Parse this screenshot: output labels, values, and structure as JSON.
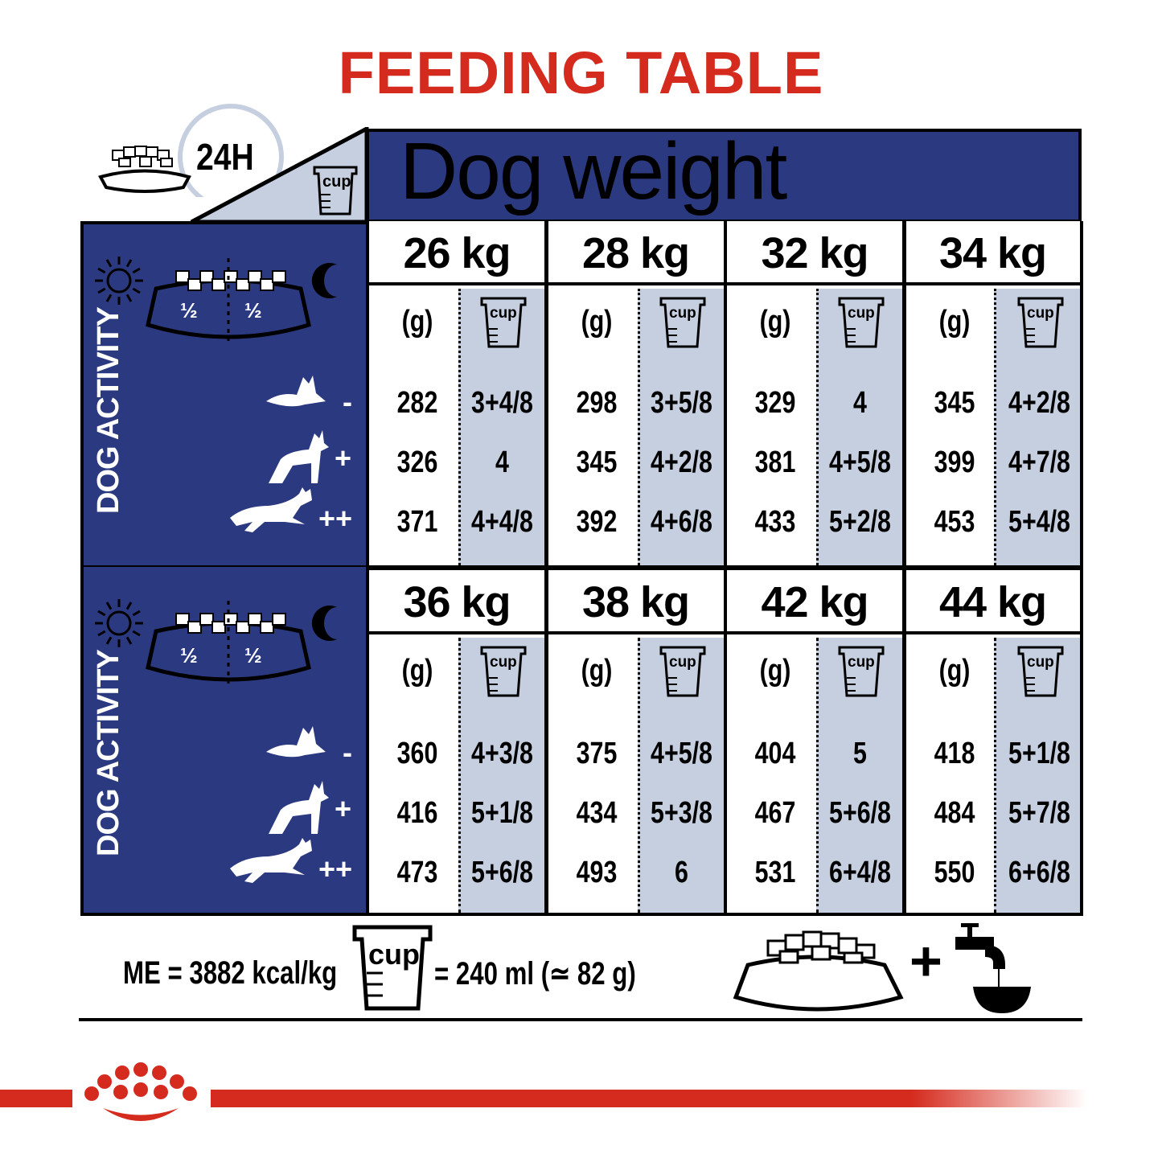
{
  "title": "FEEDING TABLE",
  "header": {
    "daily_label": "24H",
    "dog_weight_label": "Dog weight",
    "cup_label": "cup"
  },
  "activity_panel": {
    "label": "DOG ACTIVITY",
    "half_label": "½",
    "levels": [
      "-",
      "+",
      "++"
    ]
  },
  "column_headers": {
    "grams": "(g)",
    "cup": "cup"
  },
  "blocks": [
    {
      "weights": [
        {
          "weight": "26 kg",
          "rows": [
            {
              "g": "282",
              "cup": "3+4/8"
            },
            {
              "g": "326",
              "cup": "4"
            },
            {
              "g": "371",
              "cup": "4+4/8"
            }
          ]
        },
        {
          "weight": "28 kg",
          "rows": [
            {
              "g": "298",
              "cup": "3+5/8"
            },
            {
              "g": "345",
              "cup": "4+2/8"
            },
            {
              "g": "392",
              "cup": "4+6/8"
            }
          ]
        },
        {
          "weight": "32 kg",
          "rows": [
            {
              "g": "329",
              "cup": "4"
            },
            {
              "g": "381",
              "cup": "4+5/8"
            },
            {
              "g": "433",
              "cup": "5+2/8"
            }
          ]
        },
        {
          "weight": "34 kg",
          "rows": [
            {
              "g": "345",
              "cup": "4+2/8"
            },
            {
              "g": "399",
              "cup": "4+7/8"
            },
            {
              "g": "453",
              "cup": "5+4/8"
            }
          ]
        }
      ]
    },
    {
      "weights": [
        {
          "weight": "36 kg",
          "rows": [
            {
              "g": "360",
              "cup": "4+3/8"
            },
            {
              "g": "416",
              "cup": "5+1/8"
            },
            {
              "g": "473",
              "cup": "5+6/8"
            }
          ]
        },
        {
          "weight": "38 kg",
          "rows": [
            {
              "g": "375",
              "cup": "4+5/8"
            },
            {
              "g": "434",
              "cup": "5+3/8"
            },
            {
              "g": "493",
              "cup": "6"
            }
          ]
        },
        {
          "weight": "42 kg",
          "rows": [
            {
              "g": "404",
              "cup": "5"
            },
            {
              "g": "467",
              "cup": "5+6/8"
            },
            {
              "g": "531",
              "cup": "6+4/8"
            }
          ]
        },
        {
          "weight": "44 kg",
          "rows": [
            {
              "g": "418",
              "cup": "5+1/8"
            },
            {
              "g": "484",
              "cup": "5+7/8"
            },
            {
              "g": "550",
              "cup": "6+6/8"
            }
          ]
        }
      ]
    }
  ],
  "footer": {
    "energy": "ME = 3882 kcal/kg",
    "cup_label": "cup",
    "cup_equivalence": "= 240 ml (≃ 82 g)",
    "plus": "+"
  },
  "colors": {
    "navy": "#2b3a80",
    "light_blue": "#c5cfe0",
    "red": "#d52b1e"
  }
}
